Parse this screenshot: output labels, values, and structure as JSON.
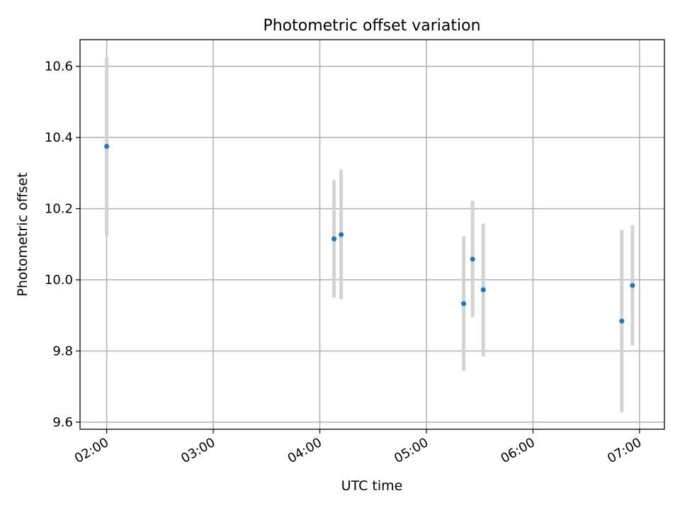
{
  "chart_data": {
    "type": "scatter",
    "title": "Photometric offset variation",
    "xlabel": "UTC time",
    "ylabel": "Photometric offset",
    "xlim": [
      "01:45",
      "07:14"
    ],
    "ylim": [
      9.58,
      10.675
    ],
    "x_ticks": [
      "02:00",
      "03:00",
      "04:00",
      "05:00",
      "06:00",
      "07:00"
    ],
    "y_ticks": [
      "9.6",
      "9.8",
      "10.0",
      "10.2",
      "10.4",
      "10.6"
    ],
    "grid": true,
    "points": [
      {
        "x": "02:00",
        "y": 10.375,
        "err_low": 10.125,
        "err_high": 10.625
      },
      {
        "x": "04:08",
        "y": 10.115,
        "err_low": 9.95,
        "err_high": 10.28
      },
      {
        "x": "04:12",
        "y": 10.127,
        "err_low": 9.945,
        "err_high": 10.31
      },
      {
        "x": "05:21",
        "y": 9.933,
        "err_low": 9.745,
        "err_high": 10.122
      },
      {
        "x": "05:26",
        "y": 10.058,
        "err_low": 9.895,
        "err_high": 10.222
      },
      {
        "x": "05:32",
        "y": 9.972,
        "err_low": 9.785,
        "err_high": 10.158
      },
      {
        "x": "06:50",
        "y": 9.884,
        "err_low": 9.628,
        "err_high": 10.14
      },
      {
        "x": "06:56",
        "y": 9.984,
        "err_low": 9.815,
        "err_high": 10.153
      }
    ],
    "colors": {
      "marker": "#1f77b4",
      "errorbar": "#d3d3d3",
      "grid": "#b0b0b0"
    }
  }
}
